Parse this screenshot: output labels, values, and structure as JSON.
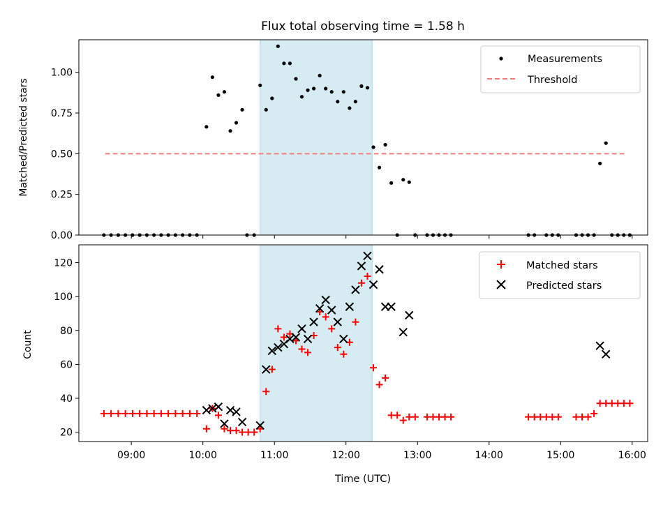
{
  "title": "Flux total observing time = 1.58 h",
  "chart_data": [
    {
      "type": "scatter",
      "ylabel": "Matched/Predicted stars",
      "xlabel": "",
      "xlim": [
        "08:16",
        "16:13"
      ],
      "ylim": [
        0,
        1.2
      ],
      "yticks": [
        0,
        0.25,
        0.5,
        0.75,
        1.0
      ],
      "ytick_labels": [
        "0.00",
        "0.25",
        "0.50",
        "0.75",
        "1.00"
      ],
      "shaded_span": [
        "10:48",
        "12:22"
      ],
      "legend_position": "top-right",
      "legend": [
        "Measurements",
        "Threshold"
      ],
      "threshold": {
        "value": 0.5,
        "x_range": [
          "08:38",
          "15:54"
        ],
        "color": "#f08080"
      },
      "series": [
        {
          "name": "Measurements",
          "marker": "dot",
          "color": "#000000",
          "points": [
            [
              "08:37",
              0
            ],
            [
              "08:43",
              0
            ],
            [
              "08:49",
              0
            ],
            [
              "08:55",
              0
            ],
            [
              "09:01",
              0
            ],
            [
              "09:07",
              0
            ],
            [
              "09:13",
              0
            ],
            [
              "09:19",
              0
            ],
            [
              "09:25",
              0
            ],
            [
              "09:31",
              0
            ],
            [
              "09:37",
              0
            ],
            [
              "09:43",
              0
            ],
            [
              "09:49",
              0
            ],
            [
              "09:55",
              0
            ],
            [
              "10:03",
              0.665
            ],
            [
              "10:08",
              0.97
            ],
            [
              "10:13",
              0.86
            ],
            [
              "10:18",
              0.88
            ],
            [
              "10:23",
              0.64
            ],
            [
              "10:28",
              0.69
            ],
            [
              "10:33",
              0.77
            ],
            [
              "10:37",
              0
            ],
            [
              "10:43",
              0
            ],
            [
              "10:48",
              0.92
            ],
            [
              "10:53",
              0.77
            ],
            [
              "10:58",
              0.84
            ],
            [
              "11:03",
              1.16
            ],
            [
              "11:08",
              1.055
            ],
            [
              "11:13",
              1.055
            ],
            [
              "11:18",
              0.96
            ],
            [
              "11:23",
              0.85
            ],
            [
              "11:28",
              0.89
            ],
            [
              "11:33",
              0.9
            ],
            [
              "11:38",
              0.98
            ],
            [
              "11:43",
              0.9
            ],
            [
              "11:48",
              0.88
            ],
            [
              "11:53",
              0.82
            ],
            [
              "11:58",
              0.88
            ],
            [
              "12:03",
              0.78
            ],
            [
              "12:08",
              0.82
            ],
            [
              "12:13",
              0.915
            ],
            [
              "12:18",
              0.905
            ],
            [
              "12:23",
              0.54
            ],
            [
              "12:28",
              0.415
            ],
            [
              "12:33",
              0.555
            ],
            [
              "12:38",
              0.32
            ],
            [
              "12:43",
              0
            ],
            [
              "12:48",
              0.34
            ],
            [
              "12:53",
              0.325
            ],
            [
              "12:58",
              0
            ],
            [
              "13:08",
              0
            ],
            [
              "13:13",
              0
            ],
            [
              "13:18",
              0
            ],
            [
              "13:23",
              0
            ],
            [
              "13:28",
              0
            ],
            [
              "14:33",
              0
            ],
            [
              "14:38",
              0
            ],
            [
              "14:48",
              0
            ],
            [
              "14:53",
              0
            ],
            [
              "14:58",
              0
            ],
            [
              "15:13",
              0
            ],
            [
              "15:18",
              0
            ],
            [
              "15:23",
              0
            ],
            [
              "15:28",
              0
            ],
            [
              "15:33",
              0.44
            ],
            [
              "15:38",
              0.565
            ],
            [
              "15:43",
              0
            ],
            [
              "15:48",
              0
            ],
            [
              "15:53",
              0
            ],
            [
              "15:58",
              0
            ]
          ]
        }
      ]
    },
    {
      "type": "scatter",
      "ylabel": "Count",
      "xlabel": "Time (UTC)",
      "xlim": [
        "08:16",
        "16:13"
      ],
      "ylim": [
        14.5,
        130.5
      ],
      "yticks": [
        20,
        40,
        60,
        80,
        100,
        120
      ],
      "ytick_labels": [
        "20",
        "40",
        "60",
        "80",
        "100",
        "120"
      ],
      "xticks": [
        "09:00",
        "10:00",
        "11:00",
        "12:00",
        "13:00",
        "14:00",
        "15:00",
        "16:00"
      ],
      "shaded_span": [
        "10:48",
        "12:22"
      ],
      "legend_position": "top-right",
      "legend": [
        "Matched stars",
        "Predicted stars"
      ],
      "series": [
        {
          "name": "Matched stars",
          "marker": "plus",
          "color": "#ff0000",
          "points": [
            [
              "08:37",
              31
            ],
            [
              "08:43",
              31
            ],
            [
              "08:49",
              31
            ],
            [
              "08:55",
              31
            ],
            [
              "09:01",
              31
            ],
            [
              "09:07",
              31
            ],
            [
              "09:13",
              31
            ],
            [
              "09:19",
              31
            ],
            [
              "09:25",
              31
            ],
            [
              "09:31",
              31
            ],
            [
              "09:37",
              31
            ],
            [
              "09:43",
              31
            ],
            [
              "09:49",
              31
            ],
            [
              "09:55",
              31
            ],
            [
              "10:03",
              22
            ],
            [
              "10:08",
              34
            ],
            [
              "10:13",
              30
            ],
            [
              "10:18",
              22
            ],
            [
              "10:23",
              21
            ],
            [
              "10:28",
              21
            ],
            [
              "10:33",
              20
            ],
            [
              "10:38",
              20
            ],
            [
              "10:43",
              20
            ],
            [
              "10:48",
              22
            ],
            [
              "10:53",
              44
            ],
            [
              "10:58",
              57
            ],
            [
              "11:03",
              81
            ],
            [
              "11:08",
              76
            ],
            [
              "11:13",
              78
            ],
            [
              "11:18",
              74
            ],
            [
              "11:23",
              69
            ],
            [
              "11:28",
              67
            ],
            [
              "11:33",
              77
            ],
            [
              "11:38",
              91
            ],
            [
              "11:43",
              88
            ],
            [
              "11:48",
              81
            ],
            [
              "11:53",
              70
            ],
            [
              "11:58",
              66
            ],
            [
              "12:03",
              73
            ],
            [
              "12:08",
              85
            ],
            [
              "12:13",
              108
            ],
            [
              "12:18",
              112
            ],
            [
              "12:23",
              58
            ],
            [
              "12:28",
              48
            ],
            [
              "12:33",
              52
            ],
            [
              "12:38",
              30
            ],
            [
              "12:43",
              30
            ],
            [
              "12:48",
              27
            ],
            [
              "12:53",
              29
            ],
            [
              "12:58",
              29
            ],
            [
              "13:08",
              29
            ],
            [
              "13:13",
              29
            ],
            [
              "13:18",
              29
            ],
            [
              "13:23",
              29
            ],
            [
              "13:28",
              29
            ],
            [
              "14:33",
              29
            ],
            [
              "14:38",
              29
            ],
            [
              "14:43",
              29
            ],
            [
              "14:48",
              29
            ],
            [
              "14:53",
              29
            ],
            [
              "14:58",
              29
            ],
            [
              "15:13",
              29
            ],
            [
              "15:18",
              29
            ],
            [
              "15:23",
              29
            ],
            [
              "15:28",
              31
            ],
            [
              "15:33",
              37
            ],
            [
              "15:38",
              37
            ],
            [
              "15:43",
              37
            ],
            [
              "15:48",
              37
            ],
            [
              "15:53",
              37
            ],
            [
              "15:58",
              37
            ]
          ]
        },
        {
          "name": "Predicted stars",
          "marker": "x",
          "color": "#000000",
          "points": [
            [
              "10:03",
              33
            ],
            [
              "10:08",
              34
            ],
            [
              "10:13",
              35
            ],
            [
              "10:18",
              25
            ],
            [
              "10:23",
              33
            ],
            [
              "10:28",
              32
            ],
            [
              "10:33",
              26
            ],
            [
              "10:48",
              24
            ],
            [
              "10:53",
              57
            ],
            [
              "10:58",
              68
            ],
            [
              "11:03",
              70
            ],
            [
              "11:08",
              72
            ],
            [
              "11:13",
              75
            ],
            [
              "11:18",
              76
            ],
            [
              "11:23",
              81
            ],
            [
              "11:28",
              75
            ],
            [
              "11:33",
              85
            ],
            [
              "11:38",
              93
            ],
            [
              "11:43",
              98
            ],
            [
              "11:48",
              92
            ],
            [
              "11:53",
              85
            ],
            [
              "11:58",
              75
            ],
            [
              "12:03",
              94
            ],
            [
              "12:08",
              104
            ],
            [
              "12:13",
              118
            ],
            [
              "12:18",
              124
            ],
            [
              "12:23",
              107
            ],
            [
              "12:28",
              116
            ],
            [
              "12:33",
              94
            ],
            [
              "12:38",
              94
            ],
            [
              "12:48",
              79
            ],
            [
              "12:53",
              89
            ],
            [
              "15:33",
              71
            ],
            [
              "15:38",
              66
            ]
          ]
        }
      ]
    }
  ]
}
